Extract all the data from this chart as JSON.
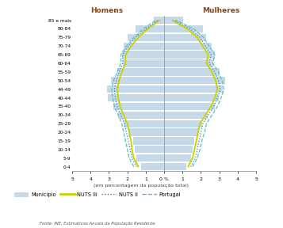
{
  "age_labels": [
    "85 e mais",
    "80-84",
    "75-79",
    "70-74",
    "65-69",
    "60-64",
    "55-59",
    "50-54",
    "44-49",
    "40-44",
    "35-40",
    "30-34",
    "25-29",
    "20-24",
    "15-19",
    "10-14",
    "5-9",
    "0-4"
  ],
  "homens_municipio": [
    0.55,
    1.55,
    2.0,
    2.2,
    2.3,
    2.25,
    2.55,
    2.9,
    3.1,
    3.05,
    2.75,
    2.5,
    2.2,
    1.95,
    1.7,
    1.6,
    1.5,
    1.25
  ],
  "homens_nuts3": [
    0.25,
    0.9,
    1.4,
    1.8,
    2.1,
    2.1,
    2.3,
    2.45,
    2.55,
    2.5,
    2.4,
    2.2,
    2.0,
    1.9,
    1.8,
    1.75,
    1.65,
    1.4
  ],
  "homens_nuts2": [
    0.35,
    1.0,
    1.55,
    1.95,
    2.25,
    2.25,
    2.45,
    2.6,
    2.7,
    2.65,
    2.55,
    2.35,
    2.15,
    2.05,
    1.95,
    1.85,
    1.75,
    1.5
  ],
  "homens_portugal": [
    0.45,
    1.15,
    1.65,
    2.05,
    2.35,
    2.35,
    2.55,
    2.75,
    2.85,
    2.8,
    2.7,
    2.5,
    2.3,
    2.2,
    2.1,
    2.0,
    1.9,
    1.65
  ],
  "mulheres_municipio": [
    1.05,
    2.1,
    2.3,
    2.6,
    2.75,
    2.65,
    3.0,
    3.3,
    3.2,
    2.95,
    2.75,
    2.35,
    2.05,
    1.85,
    1.65,
    1.55,
    1.45,
    1.2
  ],
  "mulheres_nuts3": [
    0.45,
    1.25,
    1.8,
    2.1,
    2.4,
    2.3,
    2.6,
    2.8,
    2.9,
    2.75,
    2.55,
    2.25,
    1.95,
    1.85,
    1.75,
    1.65,
    1.55,
    1.3
  ],
  "mulheres_nuts2": [
    0.55,
    1.4,
    1.95,
    2.25,
    2.55,
    2.45,
    2.75,
    2.95,
    3.05,
    2.9,
    2.7,
    2.4,
    2.1,
    2.0,
    1.9,
    1.8,
    1.7,
    1.45
  ],
  "mulheres_portugal": [
    0.65,
    1.6,
    2.15,
    2.45,
    2.75,
    2.65,
    2.95,
    3.15,
    3.25,
    3.1,
    2.9,
    2.6,
    2.3,
    2.2,
    2.05,
    1.95,
    1.8,
    1.55
  ],
  "municipio_color": "#c5d9e8",
  "nuts3_color": "#c8d400",
  "nuts2_color": "#3a7abf",
  "portugal_color": "#5bbfbf",
  "xlabel": "(em percentagem da população total)",
  "homens_label": "Homens",
  "mulheres_label": "Mulheres",
  "municipio_label": "Município",
  "nuts3_label": "NUTS III",
  "nuts2_label": "NUTS II",
  "portugal_label": "Portugal",
  "fonte_label": "Fonte: INE, Estimativas Anuais da População Residente.",
  "bg_color": "#ffffff"
}
